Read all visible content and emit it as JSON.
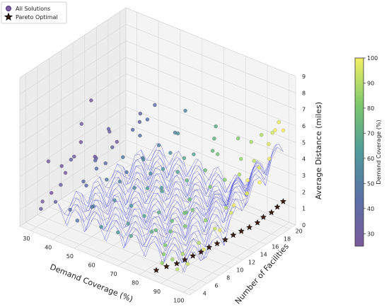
{
  "chart_data": {
    "type": "scatter",
    "projection": "3d",
    "x_axis": {
      "label": "Demand Coverage (%)",
      "ticks": [
        30,
        40,
        50,
        60,
        70,
        80,
        90,
        100
      ],
      "range": [
        25,
        103
      ]
    },
    "y_axis": {
      "label": "Number of Facilities",
      "ticks": [
        4,
        6,
        8,
        10,
        12,
        14,
        16,
        18,
        20
      ],
      "range": [
        3,
        21
      ]
    },
    "z_axis": {
      "label": "Average Distance (miles)",
      "ticks": [
        0,
        1,
        2,
        3,
        4,
        5,
        6,
        7,
        8,
        9
      ],
      "range": [
        0,
        9
      ]
    },
    "grid": true,
    "legend": {
      "placement": "top-left",
      "entries": [
        {
          "label": "All Solutions",
          "marker": "circle",
          "color": "#6a4c93"
        },
        {
          "label": "Pareto Optimal",
          "marker": "star",
          "color": "#000000"
        }
      ]
    },
    "colorbar": {
      "label": "Demand Coverage (%)",
      "ticks": [
        30,
        40,
        50,
        60,
        70,
        80,
        90,
        100
      ],
      "range": [
        25,
        100
      ],
      "colormap": "viridis",
      "colors": [
        "#440154",
        "#3b528b",
        "#21918c",
        "#5ec962",
        "#fde725"
      ]
    },
    "surface_color": "#3a3ae0",
    "series": [
      {
        "name": "All Solutions",
        "points": [
          [
            28,
            14,
            5.2
          ],
          [
            29,
            12,
            4.3
          ],
          [
            30,
            6,
            3.5
          ],
          [
            28,
            9,
            2.4
          ],
          [
            29,
            18,
            1.8
          ],
          [
            30,
            5,
            1.3
          ],
          [
            32,
            4,
            1.2
          ],
          [
            31,
            10,
            2.9
          ],
          [
            33,
            7,
            2.0
          ],
          [
            35,
            8,
            3.4
          ],
          [
            36,
            5,
            1.6
          ],
          [
            38,
            11,
            2.8
          ],
          [
            40,
            6,
            1.1
          ],
          [
            42,
            8,
            2.2
          ],
          [
            44,
            9,
            3.1
          ],
          [
            46,
            5,
            1.0
          ],
          [
            48,
            7,
            1.5
          ],
          [
            50,
            6,
            1.8
          ],
          [
            52,
            10,
            2.5
          ],
          [
            55,
            8,
            2.0
          ],
          [
            57,
            5,
            1.2
          ],
          [
            60,
            9,
            1.7
          ],
          [
            62,
            11,
            2.4
          ],
          [
            64,
            7,
            1.3
          ],
          [
            66,
            12,
            2.2
          ],
          [
            68,
            6,
            1.0
          ],
          [
            70,
            10,
            1.6
          ],
          [
            72,
            14,
            2.7
          ],
          [
            74,
            8,
            1.2
          ],
          [
            76,
            13,
            2.0
          ],
          [
            78,
            9,
            1.1
          ],
          [
            80,
            15,
            2.5
          ],
          [
            82,
            10,
            1.4
          ],
          [
            84,
            16,
            2.9
          ],
          [
            86,
            12,
            1.5
          ],
          [
            88,
            17,
            3.2
          ],
          [
            90,
            14,
            2.0
          ],
          [
            92,
            18,
            4.0
          ],
          [
            94,
            16,
            2.6
          ],
          [
            96,
            19,
            5.0
          ],
          [
            98,
            20,
            6.2
          ],
          [
            99,
            18,
            4.5
          ],
          [
            100,
            20,
            5.8
          ],
          [
            97,
            15,
            3.0
          ],
          [
            95,
            13,
            2.2
          ],
          [
            93,
            11,
            1.6
          ],
          [
            91,
            9,
            1.1
          ],
          [
            89,
            7,
            0.8
          ],
          [
            87,
            6,
            0.6
          ],
          [
            85,
            5,
            0.5
          ],
          [
            83,
            6,
            0.7
          ],
          [
            81,
            7,
            0.9
          ],
          [
            79,
            11,
            1.8
          ],
          [
            77,
            12,
            1.5
          ],
          [
            75,
            16,
            3.0
          ],
          [
            73,
            18,
            3.6
          ],
          [
            71,
            19,
            4.0
          ],
          [
            69,
            20,
            4.4
          ],
          [
            67,
            17,
            3.3
          ],
          [
            65,
            15,
            2.6
          ],
          [
            63,
            13,
            2.0
          ],
          [
            61,
            14,
            2.8
          ],
          [
            59,
            16,
            3.2
          ],
          [
            57,
            18,
            3.8
          ],
          [
            55,
            20,
            4.6
          ],
          [
            53,
            19,
            3.4
          ],
          [
            51,
            17,
            3.0
          ],
          [
            49,
            15,
            2.6
          ],
          [
            47,
            13,
            2.1
          ],
          [
            45,
            16,
            3.5
          ],
          [
            43,
            18,
            3.9
          ],
          [
            41,
            20,
            4.2
          ],
          [
            39,
            17,
            3.3
          ],
          [
            37,
            19,
            3.7
          ],
          [
            35,
            15,
            2.5
          ],
          [
            33,
            13,
            2.2
          ],
          [
            31,
            16,
            3.0
          ],
          [
            34,
            20,
            2.8
          ],
          [
            36,
            14,
            3.9
          ],
          [
            48,
            12,
            3.3
          ],
          [
            58,
            13,
            2.6
          ],
          [
            68,
            15,
            3.6
          ],
          [
            78,
            17,
            3.9
          ],
          [
            88,
            19,
            4.7
          ],
          [
            99,
            12,
            3.1
          ],
          [
            100,
            14,
            4.2
          ],
          [
            98,
            10,
            2.0
          ],
          [
            96,
            8,
            1.2
          ],
          [
            94,
            6,
            0.7
          ],
          [
            92,
            5,
            0.5
          ],
          [
            100,
            16,
            3.6
          ],
          [
            99,
            19,
            6.0
          ],
          [
            97,
            17,
            4.1
          ],
          [
            95,
            20,
            5.4
          ],
          [
            90,
            20,
            5.0
          ],
          [
            86,
            18,
            3.8
          ],
          [
            82,
            19,
            4.6
          ],
          [
            80,
            12,
            1.8
          ],
          [
            76,
            10,
            1.4
          ],
          [
            72,
            8,
            1.0
          ],
          [
            66,
            9,
            1.4
          ],
          [
            62,
            6,
            0.9
          ],
          [
            56,
            11,
            2.1
          ],
          [
            52,
            14,
            2.9
          ],
          [
            46,
            10,
            2.3
          ],
          [
            40,
            12,
            2.5
          ],
          [
            38,
            9,
            2.0
          ],
          [
            27,
            15,
            1.5
          ],
          [
            26,
            13,
            2.8
          ],
          [
            27,
            10,
            1.7
          ],
          [
            26,
            8,
            0.9
          ]
        ]
      },
      {
        "name": "Pareto Optimal",
        "points": [
          [
            85,
            4,
            0.3
          ],
          [
            87,
            5,
            0.4
          ],
          [
            89,
            6,
            0.45
          ],
          [
            90,
            7,
            0.5
          ],
          [
            91,
            8,
            0.55
          ],
          [
            92,
            9,
            0.6
          ],
          [
            93,
            10,
            0.7
          ],
          [
            94,
            11,
            0.75
          ],
          [
            95,
            12,
            0.8
          ],
          [
            96,
            13,
            0.9
          ],
          [
            97,
            14,
            0.95
          ],
          [
            98,
            15,
            1.0
          ],
          [
            99,
            16,
            1.1
          ],
          [
            99,
            17,
            1.2
          ],
          [
            100,
            18,
            1.3
          ],
          [
            100,
            19,
            1.4
          ],
          [
            100,
            20,
            1.5
          ]
        ]
      }
    ]
  }
}
